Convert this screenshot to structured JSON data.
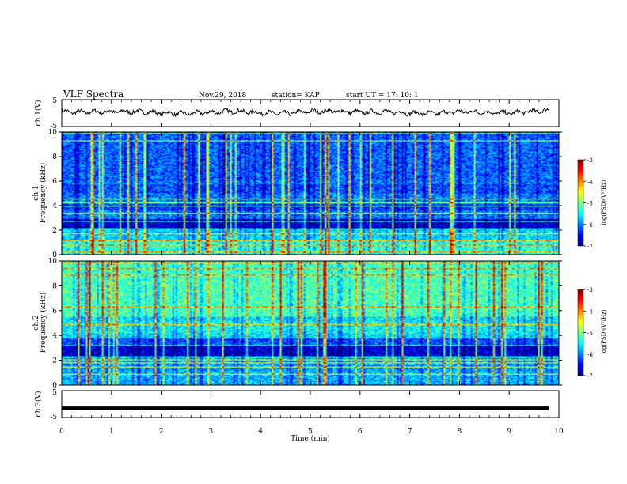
{
  "header": {
    "title": "VLF Spectra",
    "date": "Nov.29, 2018",
    "station": "station= KAP",
    "start": "start  UT =   17: 10: 1"
  },
  "colors": {
    "spectrogram_scale": [
      "#00007f",
      "#0000ff",
      "#007fff",
      "#00ffff",
      "#7fff7f",
      "#ffff00",
      "#ff7f00",
      "#ff0000",
      "#7f0000"
    ],
    "trace": "#000000"
  },
  "chart_data": [
    {
      "type": "line",
      "panel": "ch1-waveform",
      "ylabel": "ch.1(V)",
      "ylim": [
        -5,
        5
      ],
      "yticks": [
        "5",
        "-5"
      ],
      "x": [
        0,
        0.5,
        1,
        1.5,
        2,
        2.5,
        3,
        3.5,
        4,
        4.5,
        5,
        5.5,
        6,
        6.5,
        7,
        7.5,
        8,
        8.5,
        9,
        9.5,
        9.8
      ],
      "y": [
        0.5,
        0.4,
        0.6,
        0.6,
        0.0,
        -0.2,
        0.3,
        0.8,
        0.1,
        -0.1,
        0.6,
        0.7,
        0.3,
        0.5,
        0.0,
        -0.1,
        0.6,
        0.3,
        0.0,
        0.7,
        1.0
      ]
    },
    {
      "type": "heatmap",
      "panel": "ch1-spectrogram",
      "ylabel_line1": "ch.1",
      "ylabel_line2": "Frequency (kHz)",
      "ylim": [
        0,
        10
      ],
      "yticks": [
        "0",
        "2",
        "4",
        "6",
        "8",
        "10"
      ],
      "colorbar": {
        "label": "log(PSD)(V²/Hz)",
        "range": [
          -7,
          -3
        ],
        "ticks": [
          "-3",
          "-4",
          "-5",
          "-6",
          "-7"
        ]
      }
    },
    {
      "type": "heatmap",
      "panel": "ch2-spectrogram",
      "ylabel_line1": "ch.2",
      "ylabel_line2": "Frequency (kHz)",
      "ylim": [
        0,
        10
      ],
      "yticks": [
        "0",
        "2",
        "4",
        "6",
        "8",
        "10"
      ],
      "colorbar": {
        "label": "log(PSD)(V²/Hz)",
        "range": [
          -7,
          -3
        ],
        "ticks": [
          "-3",
          "-4",
          "-5",
          "-6",
          "-7"
        ]
      }
    },
    {
      "type": "line",
      "panel": "ch3-waveform",
      "ylabel": "ch.3(V)",
      "ylim": [
        -5,
        5
      ],
      "yticks": [
        "5",
        "-5"
      ],
      "x": [
        0,
        9.8
      ],
      "y": [
        -1.5,
        -1.5
      ]
    }
  ],
  "time_axis": {
    "xlabel": "Time (min)",
    "xlim": [
      0,
      10
    ],
    "xticks": [
      "0",
      "1",
      "2",
      "3",
      "4",
      "5",
      "6",
      "7",
      "8",
      "9",
      "10"
    ]
  }
}
